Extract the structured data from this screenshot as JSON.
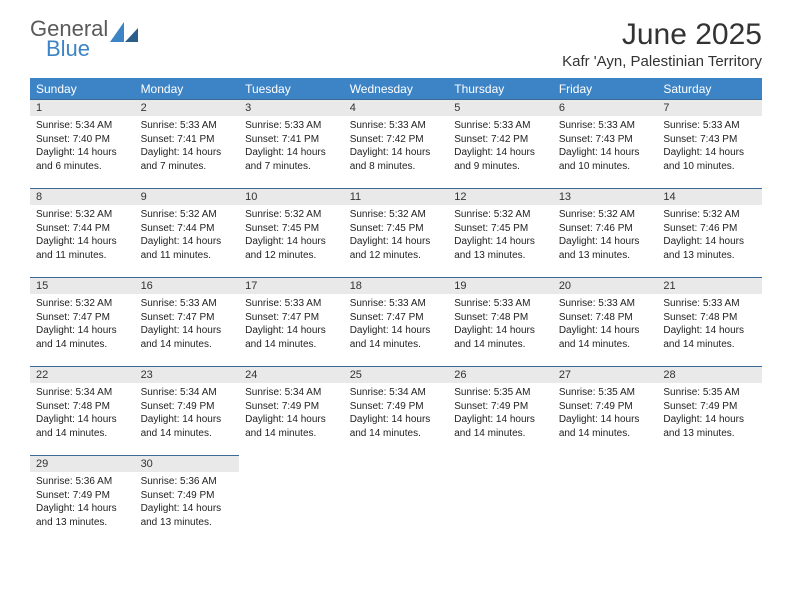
{
  "logo": {
    "word1": "General",
    "word2": "Blue"
  },
  "month_title": "June 2025",
  "location": "Kafr 'Ayn, Palestinian Territory",
  "day_headers": [
    "Sunday",
    "Monday",
    "Tuesday",
    "Wednesday",
    "Thursday",
    "Friday",
    "Saturday"
  ],
  "colors": {
    "header_bg": "#3d84c6",
    "header_text": "#ffffff",
    "cell_topline": "#3d6a94",
    "daynum_bg": "#e9e9e9"
  },
  "weeks": [
    [
      {
        "n": "1",
        "sunrise": "Sunrise: 5:34 AM",
        "sunset": "Sunset: 7:40 PM",
        "daylight": "Daylight: 14 hours and 6 minutes."
      },
      {
        "n": "2",
        "sunrise": "Sunrise: 5:33 AM",
        "sunset": "Sunset: 7:41 PM",
        "daylight": "Daylight: 14 hours and 7 minutes."
      },
      {
        "n": "3",
        "sunrise": "Sunrise: 5:33 AM",
        "sunset": "Sunset: 7:41 PM",
        "daylight": "Daylight: 14 hours and 7 minutes."
      },
      {
        "n": "4",
        "sunrise": "Sunrise: 5:33 AM",
        "sunset": "Sunset: 7:42 PM",
        "daylight": "Daylight: 14 hours and 8 minutes."
      },
      {
        "n": "5",
        "sunrise": "Sunrise: 5:33 AM",
        "sunset": "Sunset: 7:42 PM",
        "daylight": "Daylight: 14 hours and 9 minutes."
      },
      {
        "n": "6",
        "sunrise": "Sunrise: 5:33 AM",
        "sunset": "Sunset: 7:43 PM",
        "daylight": "Daylight: 14 hours and 10 minutes."
      },
      {
        "n": "7",
        "sunrise": "Sunrise: 5:33 AM",
        "sunset": "Sunset: 7:43 PM",
        "daylight": "Daylight: 14 hours and 10 minutes."
      }
    ],
    [
      {
        "n": "8",
        "sunrise": "Sunrise: 5:32 AM",
        "sunset": "Sunset: 7:44 PM",
        "daylight": "Daylight: 14 hours and 11 minutes."
      },
      {
        "n": "9",
        "sunrise": "Sunrise: 5:32 AM",
        "sunset": "Sunset: 7:44 PM",
        "daylight": "Daylight: 14 hours and 11 minutes."
      },
      {
        "n": "10",
        "sunrise": "Sunrise: 5:32 AM",
        "sunset": "Sunset: 7:45 PM",
        "daylight": "Daylight: 14 hours and 12 minutes."
      },
      {
        "n": "11",
        "sunrise": "Sunrise: 5:32 AM",
        "sunset": "Sunset: 7:45 PM",
        "daylight": "Daylight: 14 hours and 12 minutes."
      },
      {
        "n": "12",
        "sunrise": "Sunrise: 5:32 AM",
        "sunset": "Sunset: 7:45 PM",
        "daylight": "Daylight: 14 hours and 13 minutes."
      },
      {
        "n": "13",
        "sunrise": "Sunrise: 5:32 AM",
        "sunset": "Sunset: 7:46 PM",
        "daylight": "Daylight: 14 hours and 13 minutes."
      },
      {
        "n": "14",
        "sunrise": "Sunrise: 5:32 AM",
        "sunset": "Sunset: 7:46 PM",
        "daylight": "Daylight: 14 hours and 13 minutes."
      }
    ],
    [
      {
        "n": "15",
        "sunrise": "Sunrise: 5:32 AM",
        "sunset": "Sunset: 7:47 PM",
        "daylight": "Daylight: 14 hours and 14 minutes."
      },
      {
        "n": "16",
        "sunrise": "Sunrise: 5:33 AM",
        "sunset": "Sunset: 7:47 PM",
        "daylight": "Daylight: 14 hours and 14 minutes."
      },
      {
        "n": "17",
        "sunrise": "Sunrise: 5:33 AM",
        "sunset": "Sunset: 7:47 PM",
        "daylight": "Daylight: 14 hours and 14 minutes."
      },
      {
        "n": "18",
        "sunrise": "Sunrise: 5:33 AM",
        "sunset": "Sunset: 7:47 PM",
        "daylight": "Daylight: 14 hours and 14 minutes."
      },
      {
        "n": "19",
        "sunrise": "Sunrise: 5:33 AM",
        "sunset": "Sunset: 7:48 PM",
        "daylight": "Daylight: 14 hours and 14 minutes."
      },
      {
        "n": "20",
        "sunrise": "Sunrise: 5:33 AM",
        "sunset": "Sunset: 7:48 PM",
        "daylight": "Daylight: 14 hours and 14 minutes."
      },
      {
        "n": "21",
        "sunrise": "Sunrise: 5:33 AM",
        "sunset": "Sunset: 7:48 PM",
        "daylight": "Daylight: 14 hours and 14 minutes."
      }
    ],
    [
      {
        "n": "22",
        "sunrise": "Sunrise: 5:34 AM",
        "sunset": "Sunset: 7:48 PM",
        "daylight": "Daylight: 14 hours and 14 minutes."
      },
      {
        "n": "23",
        "sunrise": "Sunrise: 5:34 AM",
        "sunset": "Sunset: 7:49 PM",
        "daylight": "Daylight: 14 hours and 14 minutes."
      },
      {
        "n": "24",
        "sunrise": "Sunrise: 5:34 AM",
        "sunset": "Sunset: 7:49 PM",
        "daylight": "Daylight: 14 hours and 14 minutes."
      },
      {
        "n": "25",
        "sunrise": "Sunrise: 5:34 AM",
        "sunset": "Sunset: 7:49 PM",
        "daylight": "Daylight: 14 hours and 14 minutes."
      },
      {
        "n": "26",
        "sunrise": "Sunrise: 5:35 AM",
        "sunset": "Sunset: 7:49 PM",
        "daylight": "Daylight: 14 hours and 14 minutes."
      },
      {
        "n": "27",
        "sunrise": "Sunrise: 5:35 AM",
        "sunset": "Sunset: 7:49 PM",
        "daylight": "Daylight: 14 hours and 14 minutes."
      },
      {
        "n": "28",
        "sunrise": "Sunrise: 5:35 AM",
        "sunset": "Sunset: 7:49 PM",
        "daylight": "Daylight: 14 hours and 13 minutes."
      }
    ],
    [
      {
        "n": "29",
        "sunrise": "Sunrise: 5:36 AM",
        "sunset": "Sunset: 7:49 PM",
        "daylight": "Daylight: 14 hours and 13 minutes."
      },
      {
        "n": "30",
        "sunrise": "Sunrise: 5:36 AM",
        "sunset": "Sunset: 7:49 PM",
        "daylight": "Daylight: 14 hours and 13 minutes."
      },
      null,
      null,
      null,
      null,
      null
    ]
  ]
}
